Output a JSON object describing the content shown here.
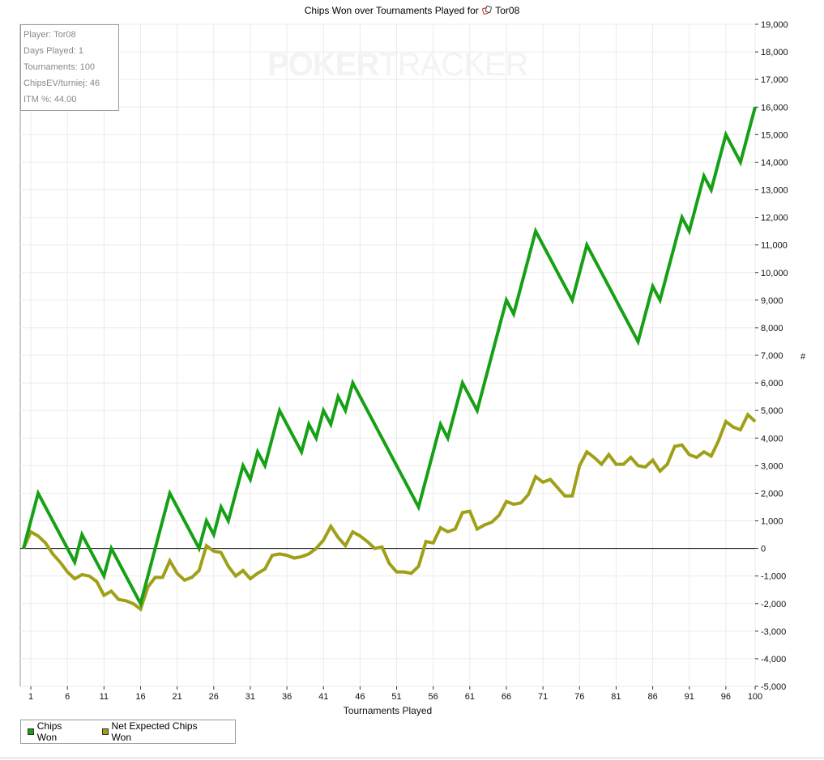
{
  "colors": {
    "chips_won": "#16a016",
    "net_expected": "#a0a018",
    "grid": "#ebebeb",
    "zero_line": "#000000"
  },
  "header": {
    "title_prefix": "Chips Won over Tournaments Played for",
    "title_player": "Tor08",
    "player_icon": "poker-chip-icon"
  },
  "stats": {
    "player": "Player: Tor08",
    "days_played": "Days Played: 1",
    "tournaments": "Tournaments: 100",
    "chipsev": "ChipsEV/turniej: 46",
    "itm": "ITM %: 44.00"
  },
  "watermark": {
    "bold": "POKER",
    "light": "TRACKER"
  },
  "right_axis_symbol": "#",
  "chart_data": {
    "type": "line",
    "title": "Chips Won over Tournaments Played for Tor08",
    "xlabel": "Tournaments Played",
    "ylabel": "#",
    "xlim": [
      0,
      100
    ],
    "ylim": [
      -5000,
      19000
    ],
    "xticks": [
      1,
      6,
      11,
      16,
      21,
      26,
      31,
      36,
      41,
      46,
      51,
      56,
      61,
      66,
      71,
      76,
      81,
      86,
      91,
      96,
      100
    ],
    "yticks": [
      -5000,
      -4000,
      -3000,
      -2000,
      -1000,
      0,
      1000,
      2000,
      3000,
      4000,
      5000,
      6000,
      7000,
      8000,
      9000,
      10000,
      11000,
      12000,
      13000,
      14000,
      15000,
      16000,
      17000,
      18000,
      19000
    ],
    "ytick_labels": [
      "-5,000",
      "-4,000",
      "-3,000",
      "-2,000",
      "-1,000",
      "0",
      "1,000",
      "2,000",
      "3,000",
      "4,000",
      "5,000",
      "6,000",
      "7,000",
      "8,000",
      "9,000",
      "10,000",
      "11,000",
      "12,000",
      "13,000",
      "14,000",
      "15,000",
      "16,000",
      "17,000",
      "18,000",
      "19,000"
    ],
    "grid": true,
    "legend_position": "bottom-left",
    "series": [
      {
        "name": "Chips Won",
        "color": "#16a016",
        "points": [
          [
            0,
            0
          ],
          [
            2,
            2000
          ],
          [
            7,
            -500
          ],
          [
            8,
            500
          ],
          [
            11,
            -1000
          ],
          [
            12,
            0
          ],
          [
            16,
            -2000
          ],
          [
            20,
            2000
          ],
          [
            24,
            0
          ],
          [
            25,
            1000
          ],
          [
            26,
            500
          ],
          [
            27,
            1500
          ],
          [
            28,
            1000
          ],
          [
            30,
            3000
          ],
          [
            31,
            2500
          ],
          [
            32,
            3500
          ],
          [
            33,
            3000
          ],
          [
            35,
            5000
          ],
          [
            38,
            3500
          ],
          [
            39,
            4500
          ],
          [
            40,
            4000
          ],
          [
            41,
            5000
          ],
          [
            42,
            4500
          ],
          [
            43,
            5500
          ],
          [
            44,
            5000
          ],
          [
            45,
            6000
          ],
          [
            54,
            1500
          ],
          [
            57,
            4500
          ],
          [
            58,
            4000
          ],
          [
            60,
            6000
          ],
          [
            62,
            5000
          ],
          [
            66,
            9000
          ],
          [
            67,
            8500
          ],
          [
            70,
            11500
          ],
          [
            75,
            9000
          ],
          [
            77,
            11000
          ],
          [
            84,
            7500
          ],
          [
            86,
            9500
          ],
          [
            87,
            9000
          ],
          [
            90,
            12000
          ],
          [
            91,
            11500
          ],
          [
            93,
            13500
          ],
          [
            94,
            13000
          ],
          [
            96,
            15000
          ],
          [
            98,
            14000
          ],
          [
            100,
            16000
          ]
        ]
      },
      {
        "name": "Net Expected Chips Won",
        "color": "#a0a018",
        "points": [
          [
            0,
            0
          ],
          [
            1,
            600
          ],
          [
            2,
            450
          ],
          [
            3,
            200
          ],
          [
            4,
            -200
          ],
          [
            5,
            -500
          ],
          [
            6,
            -850
          ],
          [
            7,
            -1100
          ],
          [
            8,
            -950
          ],
          [
            9,
            -1000
          ],
          [
            10,
            -1200
          ],
          [
            11,
            -1700
          ],
          [
            12,
            -1550
          ],
          [
            13,
            -1850
          ],
          [
            14,
            -1900
          ],
          [
            15,
            -2000
          ],
          [
            16,
            -2200
          ],
          [
            17,
            -1400
          ],
          [
            18,
            -1050
          ],
          [
            19,
            -1050
          ],
          [
            20,
            -450
          ],
          [
            21,
            -900
          ],
          [
            22,
            -1150
          ],
          [
            23,
            -1050
          ],
          [
            24,
            -800
          ],
          [
            25,
            100
          ],
          [
            26,
            -100
          ],
          [
            27,
            -150
          ],
          [
            28,
            -650
          ],
          [
            29,
            -1000
          ],
          [
            30,
            -800
          ],
          [
            31,
            -1100
          ],
          [
            32,
            -900
          ],
          [
            33,
            -750
          ],
          [
            34,
            -250
          ],
          [
            35,
            -200
          ],
          [
            36,
            -250
          ],
          [
            37,
            -350
          ],
          [
            38,
            -300
          ],
          [
            39,
            -200
          ],
          [
            40,
            0
          ],
          [
            41,
            300
          ],
          [
            42,
            800
          ],
          [
            43,
            400
          ],
          [
            44,
            100
          ],
          [
            45,
            600
          ],
          [
            46,
            450
          ],
          [
            47,
            250
          ],
          [
            48,
            0
          ],
          [
            49,
            50
          ],
          [
            50,
            -550
          ],
          [
            51,
            -850
          ],
          [
            52,
            -850
          ],
          [
            53,
            -900
          ],
          [
            54,
            -650
          ],
          [
            55,
            250
          ],
          [
            56,
            200
          ],
          [
            57,
            750
          ],
          [
            58,
            600
          ],
          [
            59,
            700
          ],
          [
            60,
            1300
          ],
          [
            61,
            1350
          ],
          [
            62,
            700
          ],
          [
            63,
            850
          ],
          [
            64,
            950
          ],
          [
            65,
            1200
          ],
          [
            66,
            1700
          ],
          [
            67,
            1600
          ],
          [
            68,
            1650
          ],
          [
            69,
            1950
          ],
          [
            70,
            2600
          ],
          [
            71,
            2400
          ],
          [
            72,
            2500
          ],
          [
            73,
            2200
          ],
          [
            74,
            1900
          ],
          [
            75,
            1900
          ],
          [
            76,
            3000
          ],
          [
            77,
            3500
          ],
          [
            78,
            3300
          ],
          [
            79,
            3050
          ],
          [
            80,
            3400
          ],
          [
            81,
            3050
          ],
          [
            82,
            3050
          ],
          [
            83,
            3300
          ],
          [
            84,
            3000
          ],
          [
            85,
            2950
          ],
          [
            86,
            3200
          ],
          [
            87,
            2800
          ],
          [
            88,
            3050
          ],
          [
            89,
            3700
          ],
          [
            90,
            3750
          ],
          [
            91,
            3400
          ],
          [
            92,
            3300
          ],
          [
            93,
            3500
          ],
          [
            94,
            3350
          ],
          [
            95,
            3900
          ],
          [
            96,
            4600
          ],
          [
            97,
            4400
          ],
          [
            98,
            4300
          ],
          [
            99,
            4850
          ],
          [
            100,
            4600
          ]
        ]
      }
    ]
  }
}
